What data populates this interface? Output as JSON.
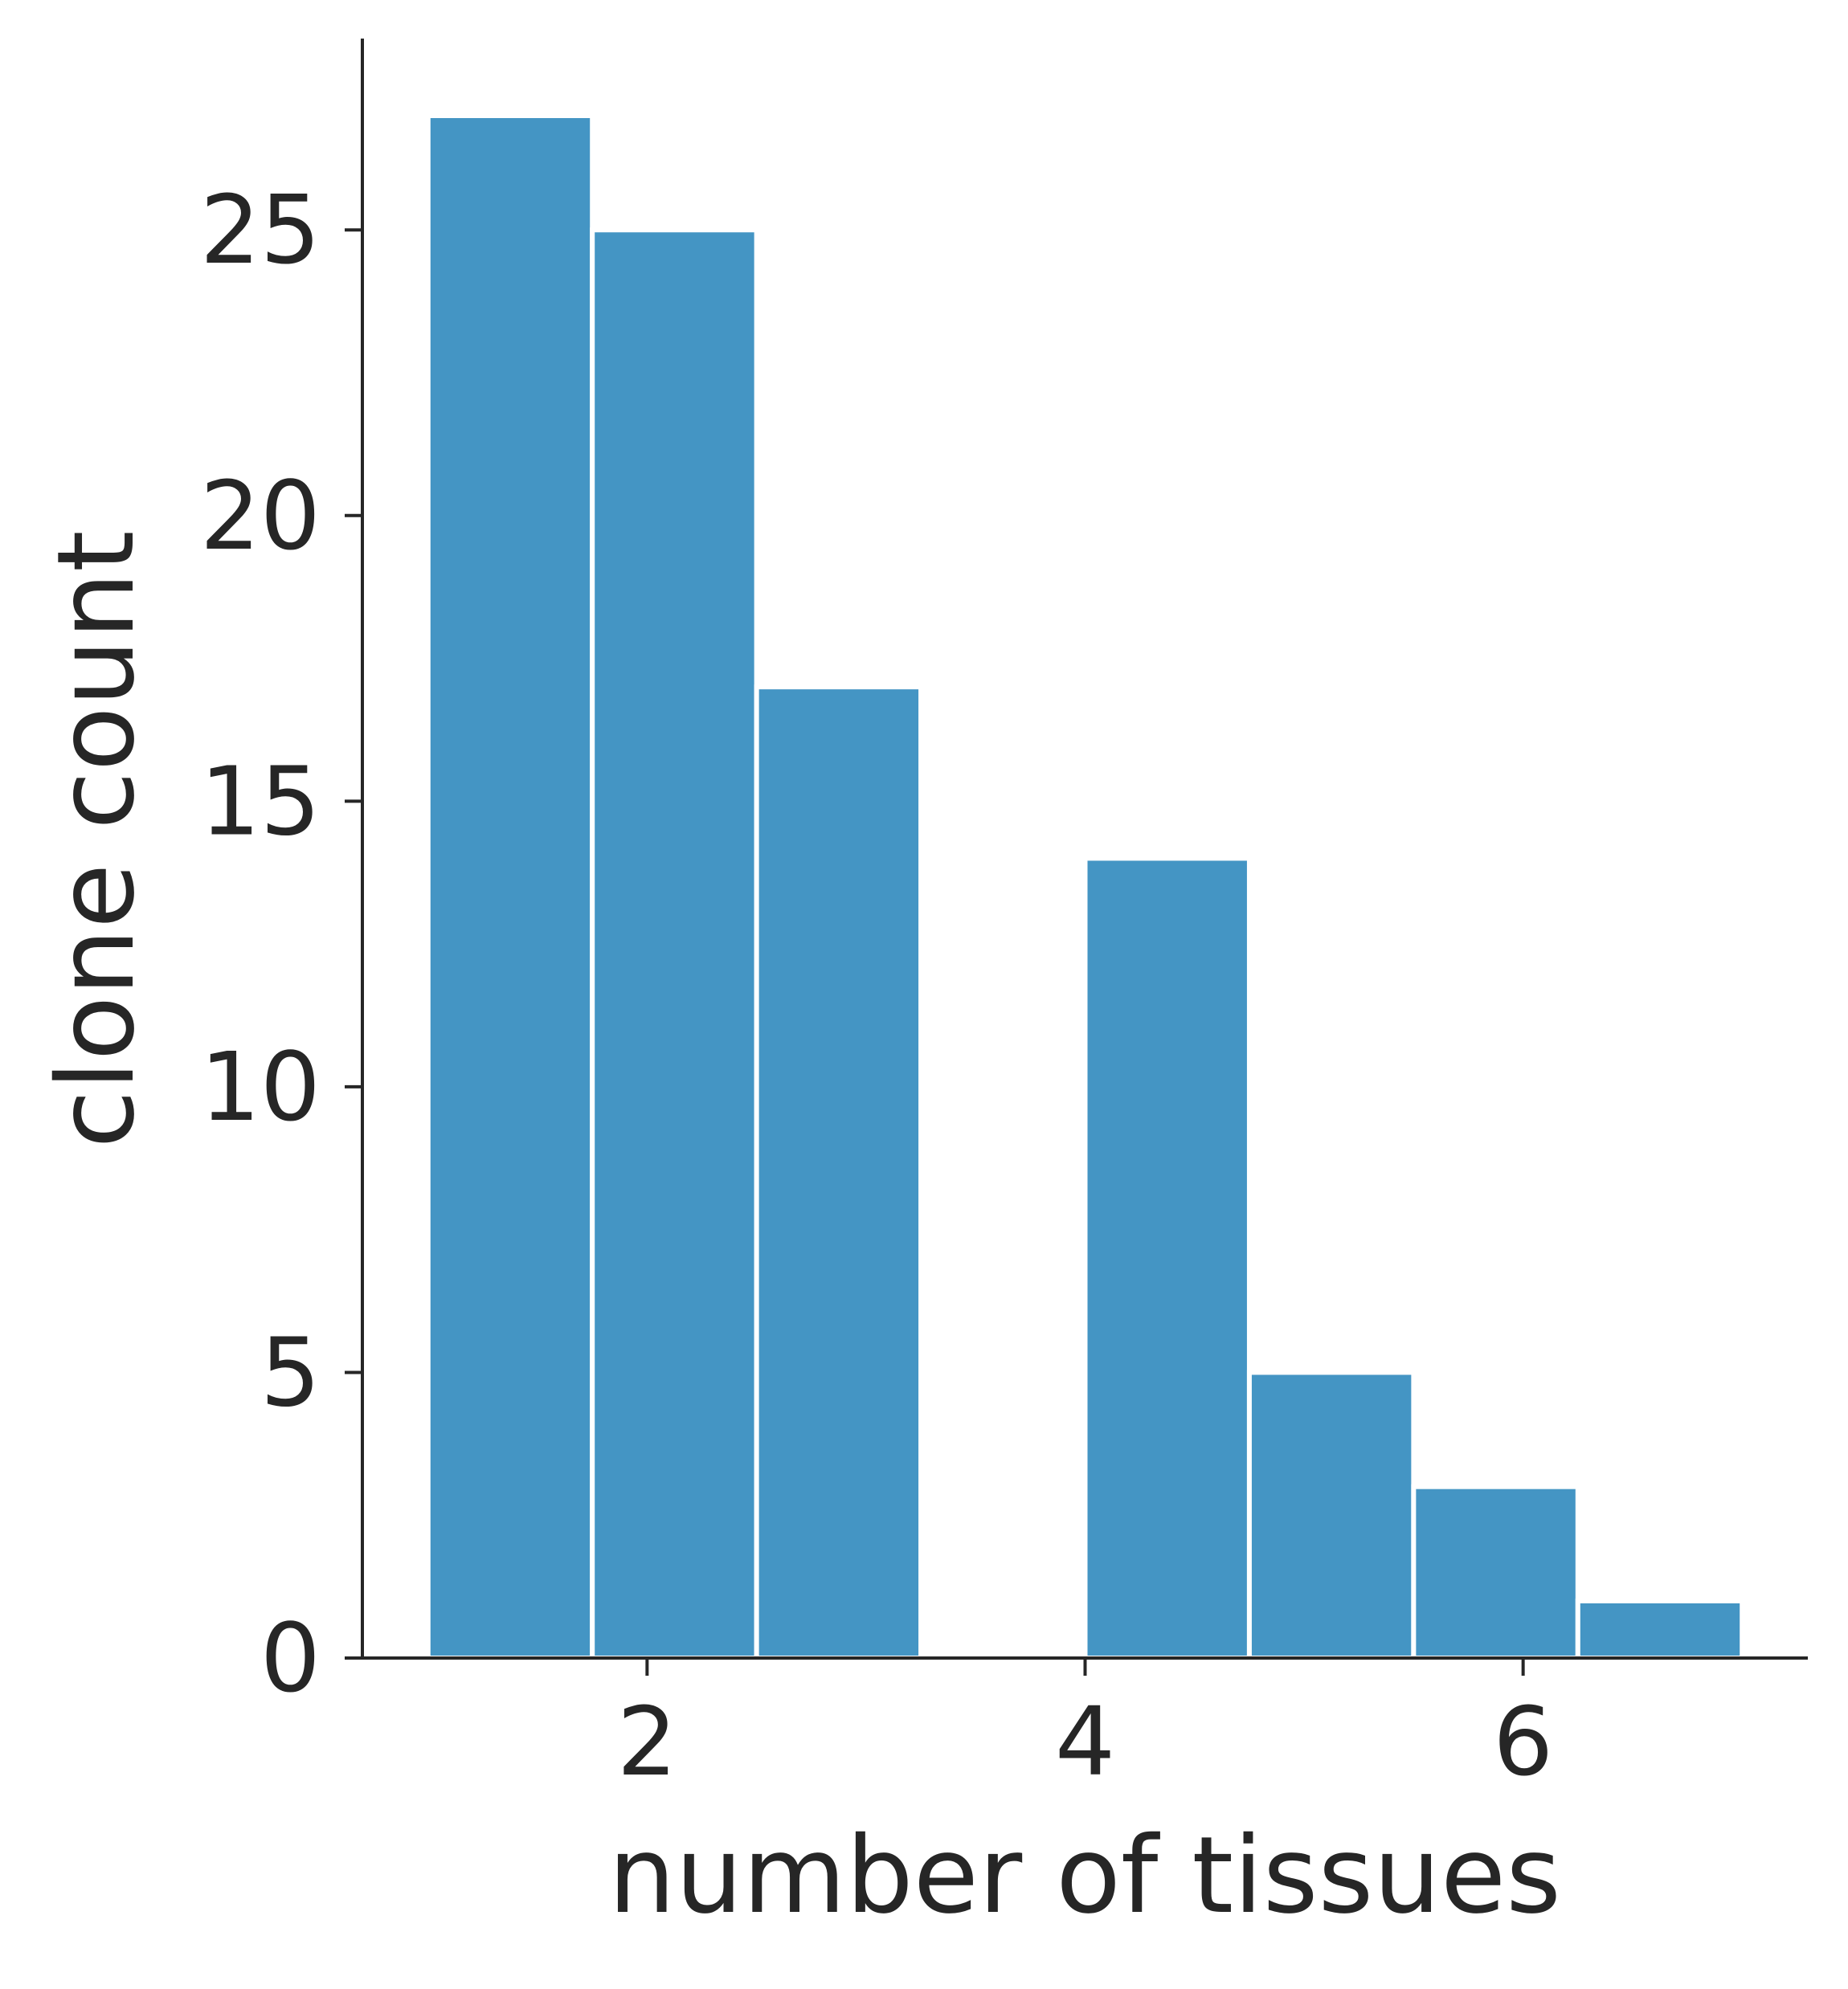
{
  "chart_data": {
    "type": "bar",
    "title": "",
    "xlabel": "number of tissues",
    "ylabel": "clone count",
    "bins": [
      {
        "x0": 1.0,
        "x1": 1.75,
        "count": 27
      },
      {
        "x0": 1.75,
        "x1": 2.5,
        "count": 25
      },
      {
        "x0": 2.5,
        "x1": 3.25,
        "count": 17
      },
      {
        "x0": 3.25,
        "x1": 4.0,
        "count": 0
      },
      {
        "x0": 4.0,
        "x1": 4.75,
        "count": 14
      },
      {
        "x0": 4.75,
        "x1": 5.5,
        "count": 5
      },
      {
        "x0": 5.5,
        "x1": 6.25,
        "count": 3
      },
      {
        "x0": 6.25,
        "x1": 7.0,
        "count": 1
      }
    ],
    "xticks": [
      2,
      4,
      6
    ],
    "xtick_labels": [
      "2",
      "4",
      "6"
    ],
    "yticks": [
      0,
      5,
      10,
      15,
      20,
      25
    ],
    "ytick_labels": [
      "0",
      "5",
      "10",
      "15",
      "20",
      "25"
    ],
    "xlim": [
      0.7,
      7.3
    ],
    "ylim": [
      0,
      28.35
    ],
    "grid": false,
    "bar_color": "#4495c4",
    "axis_color": "#262626"
  }
}
